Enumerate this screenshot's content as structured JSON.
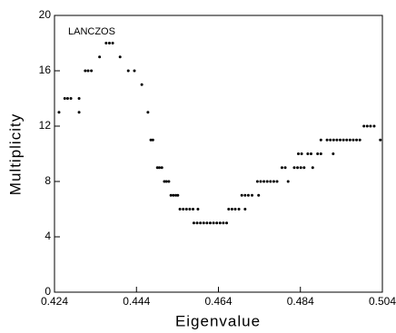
{
  "chart_data": {
    "type": "scatter",
    "annotation": "LANCZOS",
    "x_label": "Eigenvalue",
    "y_label": "Multiplicity",
    "color": "#000000",
    "xlim": [
      0.424,
      0.504
    ],
    "xticks": [
      0.424,
      0.444,
      0.464,
      0.484,
      0.504
    ],
    "ylim": [
      0,
      20
    ],
    "yticks": [
      0,
      4,
      8,
      12,
      16,
      20
    ],
    "x": [
      0.4251,
      0.43,
      0.4265,
      0.4272,
      0.428,
      0.43,
      0.4315,
      0.4322,
      0.433,
      0.435,
      0.4366,
      0.4374,
      0.4382,
      0.44,
      0.442,
      0.4435,
      0.4453,
      0.4468,
      0.4475,
      0.448,
      0.4491,
      0.4496,
      0.4502,
      0.4508,
      0.4513,
      0.4519,
      0.4524,
      0.453,
      0.4536,
      0.4541,
      0.4546,
      0.4554,
      0.4562,
      0.457,
      0.4578,
      0.459,
      0.458,
      0.4588,
      0.4596,
      0.4604,
      0.4612,
      0.462,
      0.4628,
      0.4636,
      0.4644,
      0.4652,
      0.466,
      0.4665,
      0.4673,
      0.4681,
      0.469,
      0.4705,
      0.4697,
      0.4705,
      0.4713,
      0.4722,
      0.4738,
      0.4735,
      0.4743,
      0.4751,
      0.4759,
      0.4767,
      0.4775,
      0.4783,
      0.481,
      0.4795,
      0.4803,
      0.4825,
      0.4833,
      0.4841,
      0.4849,
      0.487,
      0.4835,
      0.4843,
      0.4858,
      0.4866,
      0.4882,
      0.489,
      0.492,
      0.489,
      0.4905,
      0.4913,
      0.4921,
      0.4929,
      0.4937,
      0.4945,
      0.4953,
      0.4961,
      0.4969,
      0.4977,
      0.4985,
      0.5035,
      0.4995,
      0.5003,
      0.5011,
      0.502
    ],
    "values": [
      13,
      13,
      14,
      14,
      14,
      14,
      16,
      16,
      16,
      17,
      18,
      18,
      18,
      17,
      16,
      16,
      15,
      13,
      11,
      11,
      9,
      9,
      9,
      8,
      8,
      8,
      7,
      7,
      7,
      7,
      6,
      6,
      6,
      6,
      6,
      6,
      5,
      5,
      5,
      5,
      5,
      5,
      5,
      5,
      5,
      5,
      5,
      6,
      6,
      6,
      6,
      6,
      7,
      7,
      7,
      7,
      7,
      8,
      8,
      8,
      8,
      8,
      8,
      8,
      8,
      9,
      9,
      9,
      9,
      9,
      9,
      9,
      10,
      10,
      10,
      10,
      10,
      10,
      10,
      11,
      11,
      11,
      11,
      11,
      11,
      11,
      11,
      11,
      11,
      11,
      11,
      11,
      12,
      12,
      12,
      12
    ]
  }
}
